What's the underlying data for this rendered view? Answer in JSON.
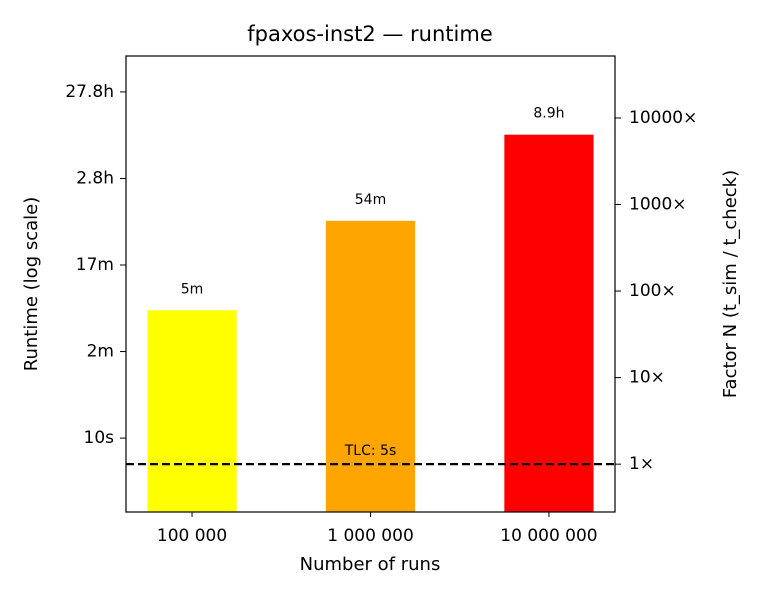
{
  "chart_data": {
    "type": "bar",
    "title": "fpaxos-inst2 — runtime",
    "x_label": "Number of runs",
    "y_label": "Runtime (log scale)",
    "y2_label": "Factor N (t_sim / t_check)",
    "categories": [
      "100 000",
      "1 000 000",
      "10 000 000"
    ],
    "values": [
      300,
      3240,
      32040
    ],
    "value_labels": [
      "5m",
      "54m",
      "8.9h"
    ],
    "colors": [
      "#ffff00",
      "#ffa500",
      "#ff0000"
    ],
    "y_scale": "log",
    "ylim": [
      1.4,
      260000
    ],
    "yticks": [
      {
        "value": 10,
        "label": "10s"
      },
      {
        "value": 100,
        "label": "2m"
      },
      {
        "value": 1000,
        "label": "17m"
      },
      {
        "value": 10000,
        "label": "2.8h"
      },
      {
        "value": 100000,
        "label": "27.8h"
      }
    ],
    "y2lim": [
      0.28,
      52000
    ],
    "y2ticks": [
      {
        "value": 1,
        "label": "1×"
      },
      {
        "value": 10,
        "label": "10×"
      },
      {
        "value": 100,
        "label": "100×"
      },
      {
        "value": 1000,
        "label": "1000×"
      },
      {
        "value": 10000,
        "label": "10000×"
      }
    ],
    "reference": {
      "value": 5,
      "label": "TLC: 5s"
    }
  }
}
